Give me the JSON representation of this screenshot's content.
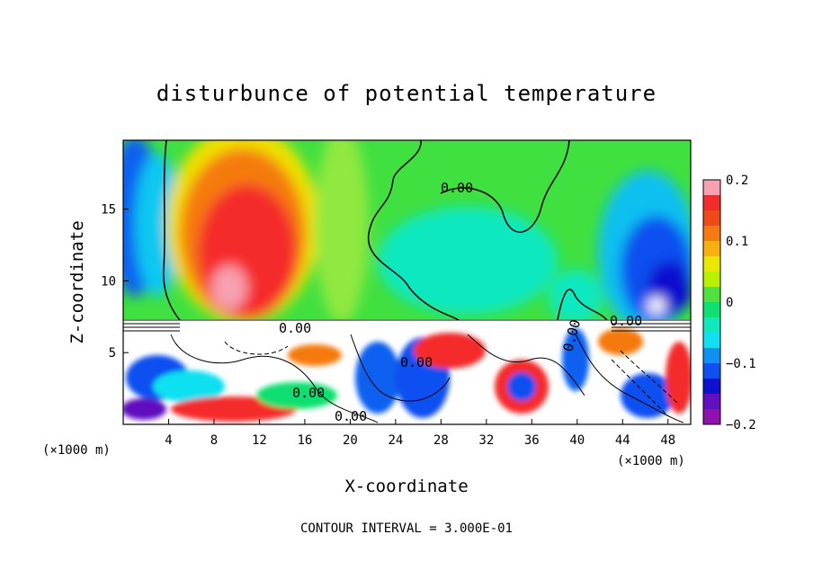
{
  "chart_data": {
    "type": "heatmap",
    "title": "disturbunce of potential temperature",
    "xlabel": "X-coordinate",
    "ylabel": "Z-coordinate",
    "x_unit": "(×1000 m)",
    "x_unit_right": "(×1000 m)",
    "xlim": [
      0,
      50
    ],
    "ylim": [
      0,
      19.8
    ],
    "x_ticks": [
      4,
      8,
      12,
      16,
      20,
      24,
      28,
      32,
      36,
      40,
      44,
      48
    ],
    "y_ticks": [
      5,
      10,
      15
    ],
    "colorbar": {
      "range": [
        -0.2,
        0.2
      ],
      "ticks": [
        "0.2",
        "0.1",
        "0",
        "−0.1",
        "−0.2"
      ],
      "colors": [
        "#f7a0b0",
        "#f52a2a",
        "#f04a1a",
        "#f57a10",
        "#f7b010",
        "#e8e800",
        "#b8f000",
        "#50e040",
        "#10e070",
        "#10e8c0",
        "#10e0f0",
        "#1090f0",
        "#1050f0",
        "#1010d0",
        "#6010c0",
        "#9010b0"
      ]
    },
    "contour_labels": [
      "0.00",
      "0.00",
      "0.00",
      "0.00",
      "0.00",
      "0.00",
      "0.00"
    ],
    "contour_interval": "CONTOUR INTERVAL = 3.000E-01"
  }
}
